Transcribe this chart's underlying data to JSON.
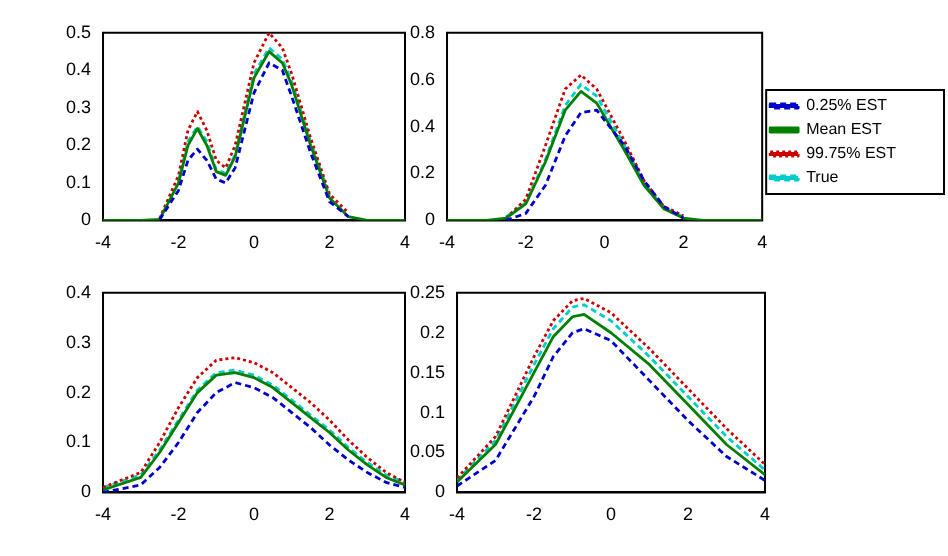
{
  "chart_data": [
    {
      "type": "line",
      "x": [
        -4,
        -3,
        -2.5,
        -2,
        -1.75,
        -1.5,
        -1.25,
        -1,
        -0.75,
        -0.5,
        0,
        0.4,
        0.75,
        1,
        1.5,
        2,
        2.5,
        3,
        4
      ],
      "xlim": [
        -4,
        4
      ],
      "xticks": [
        -4,
        -2,
        0,
        2,
        4
      ],
      "ylim": [
        0,
        0.5
      ],
      "yticks": [
        0,
        0.1,
        0.2,
        0.3,
        0.4,
        0.5
      ],
      "grid": false,
      "legend": false,
      "marker": "none",
      "series": [
        {
          "color": "#0000cc",
          "line_style": "dashed",
          "values": [
            null,
            null,
            0.002,
            0.08,
            0.16,
            0.19,
            0.16,
            0.11,
            0.1,
            0.14,
            0.34,
            0.42,
            0.4,
            0.33,
            0.18,
            0.05,
            0.01,
            null,
            null
          ]
        },
        {
          "color": "#008000",
          "line_style": "solid",
          "values": [
            0,
            0,
            0.003,
            0.1,
            0.2,
            0.245,
            0.2,
            0.13,
            0.12,
            0.17,
            0.38,
            0.45,
            0.42,
            0.36,
            0.2,
            0.06,
            0.01,
            0,
            0
          ]
        },
        {
          "color": "#cc0000",
          "line_style": "dotted",
          "values": [
            null,
            null,
            0.005,
            0.12,
            0.24,
            0.29,
            0.24,
            0.16,
            0.14,
            0.2,
            0.42,
            0.5,
            0.46,
            0.39,
            0.22,
            0.07,
            0.02,
            null,
            null
          ]
        },
        {
          "color": "#00cccc",
          "line_style": "dashed",
          "values": [
            null,
            null,
            null,
            0.105,
            0.21,
            0.25,
            0.21,
            0.135,
            0.125,
            0.175,
            0.39,
            0.46,
            0.43,
            0.37,
            0.21,
            0.065,
            null,
            null,
            null
          ]
        }
      ]
    },
    {
      "type": "line",
      "x": [
        -4,
        -3,
        -2.5,
        -2,
        -1.5,
        -1,
        -0.6,
        -0.2,
        0.5,
        1,
        1.5,
        2,
        2.5,
        3,
        4
      ],
      "xlim": [
        -4,
        4
      ],
      "xticks": [
        -4,
        -2,
        0,
        2,
        4
      ],
      "ylim": [
        0,
        0.8
      ],
      "yticks": [
        0,
        0.2,
        0.4,
        0.6,
        0.8
      ],
      "grid": false,
      "legend": "right",
      "marker": "none",
      "series": [
        {
          "name": "0.25% EST",
          "color": "#0000cc",
          "line_style": "dashed",
          "values": [
            null,
            null,
            0,
            0.03,
            0.15,
            0.36,
            0.46,
            0.47,
            0.32,
            0.17,
            0.06,
            0.01,
            null,
            null,
            null
          ]
        },
        {
          "name": "Mean EST",
          "color": "#008000",
          "line_style": "solid",
          "values": [
            0,
            0,
            0.01,
            0.07,
            0.25,
            0.47,
            0.55,
            0.5,
            0.3,
            0.15,
            0.05,
            0.01,
            0,
            0,
            0
          ]
        },
        {
          "name": "99.75% EST",
          "color": "#cc0000",
          "line_style": "dotted",
          "values": [
            null,
            null,
            0.01,
            0.09,
            0.32,
            0.56,
            0.62,
            0.56,
            0.34,
            0.17,
            0.06,
            0.02,
            null,
            null,
            null
          ]
        },
        {
          "name": "True",
          "color": "#00cccc",
          "line_style": "dashed",
          "values": [
            null,
            null,
            0.015,
            0.075,
            0.26,
            0.49,
            0.58,
            0.53,
            0.32,
            0.16,
            0.055,
            0.015,
            null,
            null,
            null
          ]
        }
      ]
    },
    {
      "type": "line",
      "x": [
        -4,
        -3,
        -2.5,
        -2,
        -1.5,
        -1,
        -0.5,
        0,
        0.5,
        1,
        1.5,
        2,
        2.5,
        3,
        3.5,
        4
      ],
      "xlim": [
        -4,
        4
      ],
      "xticks": [
        -4,
        -2,
        0,
        2,
        4
      ],
      "ylim": [
        0,
        0.4
      ],
      "yticks": [
        0,
        0.1,
        0.2,
        0.3,
        0.4
      ],
      "grid": false,
      "legend": false,
      "marker": "none",
      "series": [
        {
          "color": "#0000cc",
          "line_style": "dashed",
          "values": [
            0,
            0.015,
            0.05,
            0.1,
            0.16,
            0.2,
            0.22,
            0.21,
            0.19,
            0.16,
            0.13,
            0.095,
            0.065,
            0.04,
            0.02,
            0.01
          ]
        },
        {
          "color": "#008000",
          "line_style": "solid",
          "values": [
            0.005,
            0.03,
            0.08,
            0.14,
            0.2,
            0.235,
            0.24,
            0.23,
            0.21,
            0.18,
            0.15,
            0.12,
            0.085,
            0.055,
            0.03,
            0.015
          ]
        },
        {
          "color": "#cc0000",
          "line_style": "dotted",
          "values": [
            0.01,
            0.04,
            0.1,
            0.17,
            0.23,
            0.265,
            0.27,
            0.26,
            0.24,
            0.21,
            0.18,
            0.145,
            0.105,
            0.07,
            0.04,
            0.02
          ]
        },
        {
          "color": "#00cccc",
          "line_style": "dashed",
          "values": [
            0.01,
            0.035,
            0.085,
            0.145,
            0.205,
            0.24,
            0.245,
            0.235,
            0.215,
            0.185,
            0.155,
            0.125,
            0.09,
            0.06,
            0.035,
            0.02
          ]
        }
      ]
    },
    {
      "type": "line",
      "x": [
        -4,
        -3,
        -2,
        -1.5,
        -1,
        -0.7,
        0,
        1,
        2,
        3,
        4
      ],
      "xlim": [
        -4,
        4
      ],
      "xticks": [
        -4,
        -2,
        0,
        2,
        4
      ],
      "ylim": [
        0,
        0.25
      ],
      "yticks": [
        0,
        0.05,
        0.1,
        0.15,
        0.2,
        0.25
      ],
      "grid": false,
      "legend": false,
      "marker": "none",
      "series": [
        {
          "color": "#0000cc",
          "line_style": "dashed",
          "values": [
            0.008,
            0.04,
            0.12,
            0.17,
            0.2,
            0.205,
            0.19,
            0.14,
            0.09,
            0.045,
            0.015
          ]
        },
        {
          "color": "#008000",
          "line_style": "solid",
          "values": [
            0.013,
            0.06,
            0.15,
            0.195,
            0.22,
            0.223,
            0.2,
            0.16,
            0.11,
            0.06,
            0.022
          ]
        },
        {
          "color": "#cc0000",
          "line_style": "dotted",
          "values": [
            0.018,
            0.07,
            0.17,
            0.215,
            0.24,
            0.243,
            0.225,
            0.18,
            0.13,
            0.08,
            0.035
          ]
        },
        {
          "color": "#00cccc",
          "line_style": "dashed",
          "values": [
            0.015,
            0.065,
            0.16,
            0.205,
            0.232,
            0.235,
            0.215,
            0.17,
            0.12,
            0.07,
            0.028
          ]
        }
      ]
    }
  ]
}
